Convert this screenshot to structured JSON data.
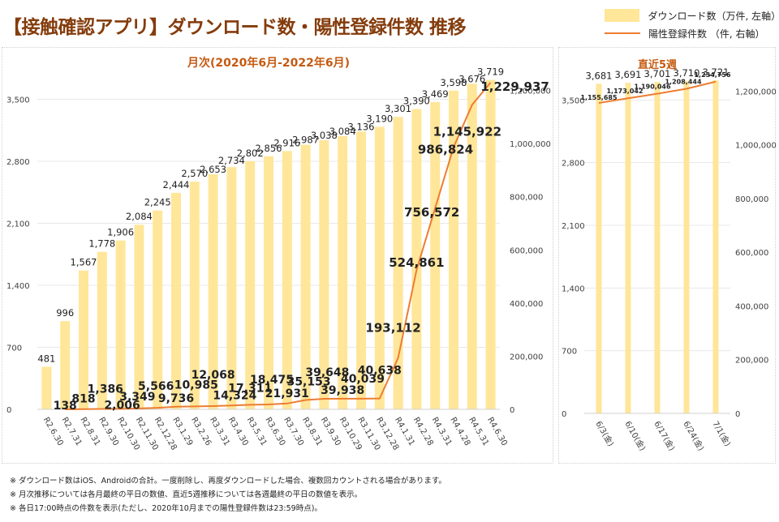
{
  "page": {
    "title": "【接触確認アプリ】ダウンロード数・陽性登録件数 推移"
  },
  "legend": {
    "bar": "ダウンロード数（万件, 左軸）",
    "line": "陽性登録件数 （件, 右軸）"
  },
  "colors": {
    "bar": "#ffe699",
    "line": "#ed7d31",
    "title": "#843c0c",
    "chart_title": "#c55a11"
  },
  "footnotes": [
    "※ ダウンロード数はiOS、Androidの合計。一度削除し、再度ダウンロードした場合、複数回カウントされる場合があります。",
    "※ 月次推移については各月最終の平日の数値、直近5週推移については各週最終の平日の数値を表示。",
    "※ 各日17:00時点の件数を表示(ただし、2020年10月までの陽性登録件数は23:59時点)。"
  ],
  "chart_data": [
    {
      "type": "bar",
      "title": "月次(2020年6月-2022年6月)",
      "categories": [
        "R2.6.30",
        "R2.7.31",
        "R2.8.31",
        "R2.9.30",
        "R2.10.30",
        "R2.11.30",
        "R2.12.28",
        "R3.1.29",
        "R3.2.26",
        "R3.3.31",
        "R3.4.30",
        "R3.5.31",
        "R3.6.30",
        "R3.7.30",
        "R3.8.31",
        "R3.9.30",
        "R3.10.29",
        "R3.11.30",
        "R3.12.28",
        "R4.1.31",
        "R4.2.28",
        "R4.3.31",
        "R4.4.28",
        "R4.5.31",
        "R4.6.30"
      ],
      "series": [
        {
          "name": "ダウンロード数（万件, 左軸）",
          "type": "bar",
          "axis": "left",
          "values": [
            481,
            996,
            1567,
            1778,
            1906,
            2084,
            2245,
            2444,
            2570,
            2653,
            2734,
            2802,
            2856,
            2916,
            2987,
            3038,
            3084,
            3136,
            3190,
            3301,
            3390,
            3469,
            3598,
            3676,
            3719
          ],
          "labels": [
            "481",
            "996",
            "1,567",
            "1,778",
            "1,906",
            "2,084",
            "2,245",
            "2,444",
            "2,570",
            "2,653",
            "2,734",
            "2,802",
            "2,856",
            "2,916",
            "2,987",
            "3,038",
            "3,084",
            "3,136",
            "3,190",
            "3,301",
            "3,390",
            "3,469",
            "3,598",
            "3,676",
            "3,719"
          ]
        },
        {
          "name": "陽性登録件数 （件, 右軸）",
          "type": "line",
          "axis": "right",
          "values": [
            null,
            138,
            818,
            1386,
            2006,
            3349,
            5566,
            9736,
            10985,
            12068,
            14324,
            17311,
            18475,
            21931,
            35153,
            39648,
            39938,
            40039,
            40638,
            193112,
            524861,
            756572,
            986824,
            1145922,
            1229937
          ],
          "labels": [
            null,
            "138",
            "818",
            "1,386",
            "2,006",
            "3,349",
            "5,566",
            "9,736",
            "10,985",
            "12,068",
            "14,324",
            "17,311",
            "18,475",
            "21,931",
            "35,153",
            "39,648",
            "39,938",
            "40,039",
            "40,638",
            "193,112",
            "524,861",
            "756,572",
            "986,824",
            "1,145,922",
            "1,229,937"
          ]
        }
      ],
      "y_left": {
        "min": 0,
        "max": 4200,
        "ticks": [
          0,
          700,
          1400,
          2100,
          2800,
          3500
        ],
        "tick_labels": [
          "0",
          "700",
          "1,400",
          "2,100",
          "2,800",
          "3,500"
        ]
      },
      "y_right": {
        "min": 0,
        "max": 1400000,
        "ticks": [
          0,
          200000,
          400000,
          600000,
          800000,
          1000000,
          1200000
        ],
        "tick_labels": [
          "0",
          "200,000",
          "400,000",
          "600,000",
          "800,000",
          "1,000,000",
          "1,200,000"
        ]
      },
      "grid": true,
      "legend": "top-right"
    },
    {
      "type": "bar",
      "title": "直近5週",
      "categories": [
        "6/3(金)",
        "6/10(金)",
        "6/17(金)",
        "6/24(金)",
        "7/1(金)"
      ],
      "series": [
        {
          "name": "ダウンロード数（万件, 左軸）",
          "type": "bar",
          "axis": "left",
          "values": [
            3681,
            3691,
            3701,
            3710,
            3721
          ],
          "labels": [
            "3,681",
            "3,691",
            "3,701",
            "3,710",
            "3,721"
          ]
        },
        {
          "name": "陽性登録件数 （件, 右軸）",
          "type": "line",
          "axis": "right",
          "values": [
            1155685,
            1173042,
            1190046,
            1208444,
            1234756
          ],
          "labels": [
            "1,155,685",
            "1,173,042",
            "1,190,046",
            "1,208,444",
            "1,234,756"
          ]
        }
      ],
      "y_left": {
        "min": 0,
        "max": 4200,
        "ticks": [
          0,
          700,
          1400,
          2100,
          2800,
          3500
        ],
        "tick_labels": [
          "0",
          "700",
          "1,400",
          "2,100",
          "2,800",
          "3,500"
        ]
      },
      "y_right": {
        "min": 0,
        "max": 1400000,
        "ticks": [
          0,
          200000,
          400000,
          600000,
          800000,
          1000000,
          1200000
        ],
        "tick_labels": [
          "0",
          "200,000",
          "400,000",
          "600,000",
          "800,000",
          "1,000,000",
          "1,200,000"
        ]
      },
      "grid": true
    }
  ]
}
